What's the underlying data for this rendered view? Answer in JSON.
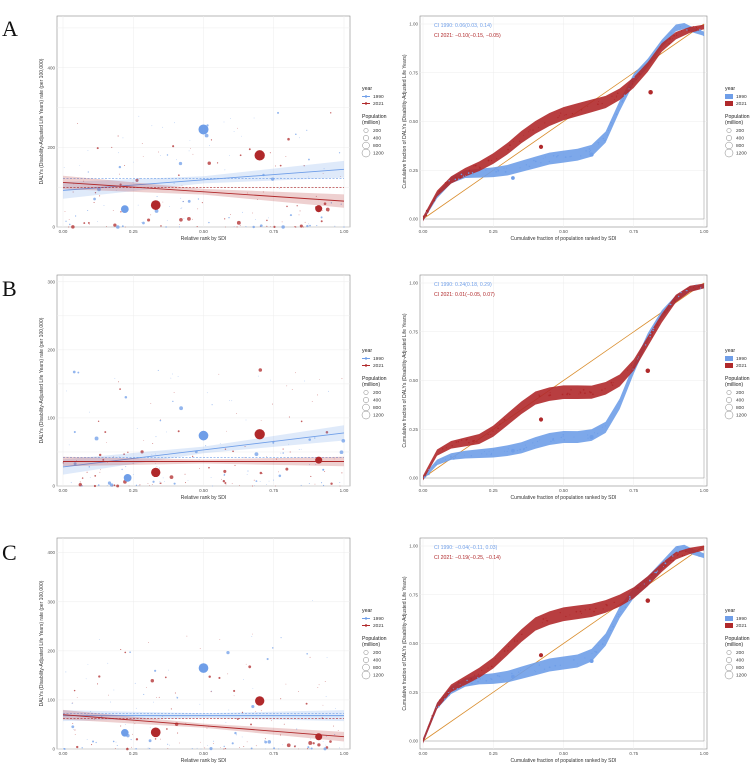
{
  "figure": {
    "panel_labels": [
      "A",
      "B",
      "C"
    ],
    "legend": {
      "year_title": "year",
      "years": [
        "1990",
        "2021"
      ],
      "pop_title_1": "Population",
      "pop_title_2": "(million)",
      "pop_sizes": [
        "200",
        "400",
        "800",
        "1200"
      ]
    },
    "colors": {
      "y1990": "#6f9ee8",
      "y2021": "#b0292b",
      "equality": "#d98c2b",
      "grid": "#ececec",
      "axis": "#888888"
    }
  },
  "chart_data": [
    {
      "type": "scatter",
      "panel": "A",
      "subplot": "slope-index",
      "xlabel": "Relative rank by SDI",
      "ylabel": "DALYs (Disability-Adjusted Life Years) rate (per 100,000)",
      "xlim": [
        0,
        1
      ],
      "ylim": [
        0,
        530
      ],
      "xticks": [
        "0.00",
        "0.25",
        "0.50",
        "0.75",
        "1.00"
      ],
      "yticks": [
        0,
        100,
        200,
        300,
        400,
        500
      ],
      "tick_labels": [
        "0",
        "",
        "200",
        "",
        "400",
        ""
      ],
      "regression": [
        {
          "name": "1990",
          "x": [
            0,
            1
          ],
          "y": [
            92,
            145
          ],
          "band": 15,
          "mean_y": 122
        },
        {
          "name": "2021",
          "x": [
            0,
            1
          ],
          "y": [
            112,
            65
          ],
          "band": 12,
          "mean_y": 99
        }
      ],
      "bubbles": [
        {
          "name": "1990",
          "x": 0.5,
          "y": 245,
          "pop": 1200
        },
        {
          "name": "2021",
          "x": 0.7,
          "y": 180,
          "pop": 1300
        },
        {
          "name": "2021",
          "x": 0.33,
          "y": 55,
          "pop": 1100
        },
        {
          "name": "1990",
          "x": 0.22,
          "y": 45,
          "pop": 600
        },
        {
          "name": "2021",
          "x": 0.91,
          "y": 46,
          "pop": 450
        }
      ]
    },
    {
      "type": "line",
      "panel": "A",
      "subplot": "concentration-curve",
      "xlabel": "Cumulative fraction of population ranked by SDI",
      "ylabel": "Cumulative fraction of DALYs (Disability-Adjusted Life Years)",
      "xlim": [
        0,
        1
      ],
      "ylim": [
        0,
        1
      ],
      "xticks": [
        "0.00",
        "0.25",
        "0.50",
        "0.75",
        "1.00"
      ],
      "yticks": [
        "0.00",
        "0.25",
        "0.50",
        "0.75",
        "1.00"
      ],
      "ci_1990": "CI 1990:  0.06(0.03, 0.14)",
      "ci_2021": "CI 2021:  −0.10(−0.15, −0.05)",
      "series": [
        {
          "name": "1990",
          "x": [
            0,
            0.05,
            0.1,
            0.15,
            0.2,
            0.25,
            0.3,
            0.35,
            0.4,
            0.45,
            0.5,
            0.55,
            0.6,
            0.65,
            0.7,
            0.75,
            0.8,
            0.85,
            0.9,
            0.93,
            0.96,
            1.0
          ],
          "y": [
            0,
            0.12,
            0.2,
            0.23,
            0.235,
            0.24,
            0.25,
            0.27,
            0.29,
            0.31,
            0.32,
            0.33,
            0.35,
            0.42,
            0.58,
            0.72,
            0.8,
            0.9,
            0.98,
            0.99,
            0.97,
            0.95
          ],
          "band": 0.022
        },
        {
          "name": "2021",
          "x": [
            0,
            0.05,
            0.1,
            0.15,
            0.2,
            0.25,
            0.3,
            0.35,
            0.4,
            0.45,
            0.5,
            0.55,
            0.6,
            0.65,
            0.7,
            0.75,
            0.8,
            0.85,
            0.9,
            0.95,
            1.0
          ],
          "y": [
            0,
            0.13,
            0.2,
            0.24,
            0.27,
            0.31,
            0.36,
            0.42,
            0.47,
            0.51,
            0.54,
            0.56,
            0.58,
            0.6,
            0.64,
            0.7,
            0.78,
            0.88,
            0.94,
            0.97,
            0.985
          ],
          "band": 0.024
        }
      ],
      "bubbles": [
        {
          "name": "2021",
          "x": 0.81,
          "y": 0.65,
          "pop": 700
        },
        {
          "name": "1990",
          "x": 0.6,
          "y": 0.33,
          "pop": 500
        },
        {
          "name": "2021",
          "x": 0.42,
          "y": 0.37,
          "pop": 550
        },
        {
          "name": "1990",
          "x": 0.32,
          "y": 0.21,
          "pop": 400
        }
      ]
    },
    {
      "type": "scatter",
      "panel": "B",
      "subplot": "slope-index",
      "xlabel": "Relative rank by SDI",
      "ylabel": "DALYs (Disability-Adjusted Life Years) rate (per 100,000)",
      "xlim": [
        0,
        1
      ],
      "ylim": [
        0,
        310
      ],
      "xticks": [
        "0.00",
        "0.25",
        "0.50",
        "0.75",
        "1.00"
      ],
      "yticks": [
        0,
        50,
        100,
        150,
        200,
        250,
        300
      ],
      "tick_labels": [
        "0",
        "",
        "100",
        "",
        "200",
        "",
        "300"
      ],
      "regression": [
        {
          "name": "1990",
          "x": [
            0,
            1
          ],
          "y": [
            28,
            78
          ],
          "band": 8,
          "mean_y": 42
        },
        {
          "name": "2021",
          "x": [
            0,
            1
          ],
          "y": [
            36,
            36
          ],
          "band": 5,
          "mean_y": 36
        }
      ],
      "bubbles": [
        {
          "name": "2021",
          "x": 0.7,
          "y": 76,
          "pop": 1300
        },
        {
          "name": "1990",
          "x": 0.5,
          "y": 74,
          "pop": 1100
        },
        {
          "name": "2021",
          "x": 0.33,
          "y": 20,
          "pop": 1000
        },
        {
          "name": "1990",
          "x": 0.23,
          "y": 12,
          "pop": 600
        },
        {
          "name": "2021",
          "x": 0.91,
          "y": 38,
          "pop": 450
        }
      ]
    },
    {
      "type": "line",
      "panel": "B",
      "subplot": "concentration-curve",
      "xlabel": "Cumulative fraction of population ranked by SDI",
      "ylabel": "Cumulative fraction of DALYs (Disability-Adjusted Life Years)",
      "xlim": [
        0,
        1
      ],
      "ylim": [
        0,
        1
      ],
      "xticks": [
        "0.00",
        "0.25",
        "0.50",
        "0.75",
        "1.00"
      ],
      "yticks": [
        "0.00",
        "0.25",
        "0.50",
        "0.75",
        "1.00"
      ],
      "ci_1990": "CI 1990:  0.24(0.18, 0.29)",
      "ci_2021": "CI 2021:  0.01(−0.05, 0.07)",
      "series": [
        {
          "name": "1990",
          "x": [
            0,
            0.05,
            0.1,
            0.15,
            0.2,
            0.25,
            0.3,
            0.35,
            0.4,
            0.45,
            0.5,
            0.55,
            0.6,
            0.65,
            0.7,
            0.75,
            0.8,
            0.85,
            0.9,
            0.95,
            1.0
          ],
          "y": [
            0,
            0.08,
            0.11,
            0.12,
            0.125,
            0.13,
            0.14,
            0.155,
            0.18,
            0.2,
            0.21,
            0.21,
            0.22,
            0.26,
            0.38,
            0.56,
            0.72,
            0.84,
            0.92,
            0.97,
            0.985
          ],
          "band": 0.022
        },
        {
          "name": "2021",
          "x": [
            0,
            0.05,
            0.1,
            0.15,
            0.2,
            0.25,
            0.3,
            0.35,
            0.4,
            0.45,
            0.5,
            0.55,
            0.6,
            0.65,
            0.7,
            0.75,
            0.8,
            0.85,
            0.9,
            0.95,
            1.0
          ],
          "y": [
            0,
            0.13,
            0.17,
            0.185,
            0.2,
            0.24,
            0.3,
            0.36,
            0.41,
            0.43,
            0.44,
            0.44,
            0.44,
            0.46,
            0.5,
            0.58,
            0.7,
            0.82,
            0.92,
            0.97,
            0.985
          ],
          "band": 0.025
        }
      ],
      "bubbles": [
        {
          "name": "2021",
          "x": 0.8,
          "y": 0.55,
          "pop": 700
        },
        {
          "name": "1990",
          "x": 0.6,
          "y": 0.21,
          "pop": 500
        },
        {
          "name": "2021",
          "x": 0.42,
          "y": 0.3,
          "pop": 550
        },
        {
          "name": "1990",
          "x": 0.32,
          "y": 0.14,
          "pop": 400
        }
      ]
    },
    {
      "type": "scatter",
      "panel": "C",
      "subplot": "slope-index",
      "xlabel": "Relative rank by SDI",
      "ylabel": "DALYs (Disability-Adjusted Life Years) rate (per 100,000)",
      "xlim": [
        0,
        1
      ],
      "ylim": [
        0,
        430
      ],
      "xticks": [
        "0.00",
        "0.25",
        "0.50",
        "0.75",
        "1.00"
      ],
      "yticks": [
        0,
        100,
        200,
        300,
        400
      ],
      "tick_labels": [
        "0",
        "100",
        "200",
        "300",
        "400"
      ],
      "regression": [
        {
          "name": "1990",
          "x": [
            0,
            1
          ],
          "y": [
            68,
            68
          ],
          "band": 8,
          "mean_y": 72
        },
        {
          "name": "2021",
          "x": [
            0,
            1
          ],
          "y": [
            70,
            25
          ],
          "band": 7,
          "mean_y": 62
        }
      ],
      "bubbles": [
        {
          "name": "1990",
          "x": 0.5,
          "y": 165,
          "pop": 1100
        },
        {
          "name": "2021",
          "x": 0.7,
          "y": 98,
          "pop": 1000
        },
        {
          "name": "2021",
          "x": 0.33,
          "y": 34,
          "pop": 1100
        },
        {
          "name": "1990",
          "x": 0.22,
          "y": 33,
          "pop": 550
        },
        {
          "name": "2021",
          "x": 0.91,
          "y": 25,
          "pop": 450
        }
      ]
    },
    {
      "type": "line",
      "panel": "C",
      "subplot": "concentration-curve",
      "xlabel": "Cumulative fraction of population ranked by SDI",
      "ylabel": "Cumulative fraction of DALYs (Disability-Adjusted Life Years)",
      "xlim": [
        0,
        1
      ],
      "ylim": [
        0,
        1
      ],
      "xticks": [
        "0.00",
        "0.25",
        "0.50",
        "0.75",
        "1.00"
      ],
      "yticks": [
        "0.00",
        "0.25",
        "0.50",
        "0.75",
        "1.00"
      ],
      "ci_1990": "CI 1990:  −0.04(−0.11, 0.03)",
      "ci_2021": "CI 2021:  −0.19(−0.25, −0.14)",
      "series": [
        {
          "name": "1990",
          "x": [
            0,
            0.05,
            0.1,
            0.15,
            0.2,
            0.25,
            0.3,
            0.35,
            0.4,
            0.45,
            0.5,
            0.55,
            0.6,
            0.65,
            0.7,
            0.75,
            0.8,
            0.85,
            0.9,
            0.93,
            0.96,
            1.0
          ],
          "y": [
            0,
            0.18,
            0.26,
            0.3,
            0.315,
            0.32,
            0.33,
            0.35,
            0.37,
            0.39,
            0.4,
            0.41,
            0.44,
            0.52,
            0.66,
            0.76,
            0.82,
            0.9,
            0.98,
            0.99,
            0.97,
            0.95
          ],
          "band": 0.024
        },
        {
          "name": "2021",
          "x": [
            0,
            0.05,
            0.1,
            0.15,
            0.2,
            0.25,
            0.3,
            0.35,
            0.4,
            0.45,
            0.5,
            0.55,
            0.6,
            0.65,
            0.7,
            0.75,
            0.8,
            0.85,
            0.9,
            0.95,
            1.0
          ],
          "y": [
            0,
            0.18,
            0.27,
            0.31,
            0.35,
            0.4,
            0.47,
            0.54,
            0.6,
            0.63,
            0.65,
            0.66,
            0.67,
            0.69,
            0.72,
            0.76,
            0.82,
            0.89,
            0.95,
            0.975,
            0.99
          ],
          "band": 0.025
        }
      ],
      "bubbles": [
        {
          "name": "2021",
          "x": 0.8,
          "y": 0.72,
          "pop": 700
        },
        {
          "name": "1990",
          "x": 0.6,
          "y": 0.41,
          "pop": 500
        },
        {
          "name": "2021",
          "x": 0.42,
          "y": 0.44,
          "pop": 550
        },
        {
          "name": "1990",
          "x": 0.32,
          "y": 0.33,
          "pop": 400
        }
      ]
    }
  ]
}
